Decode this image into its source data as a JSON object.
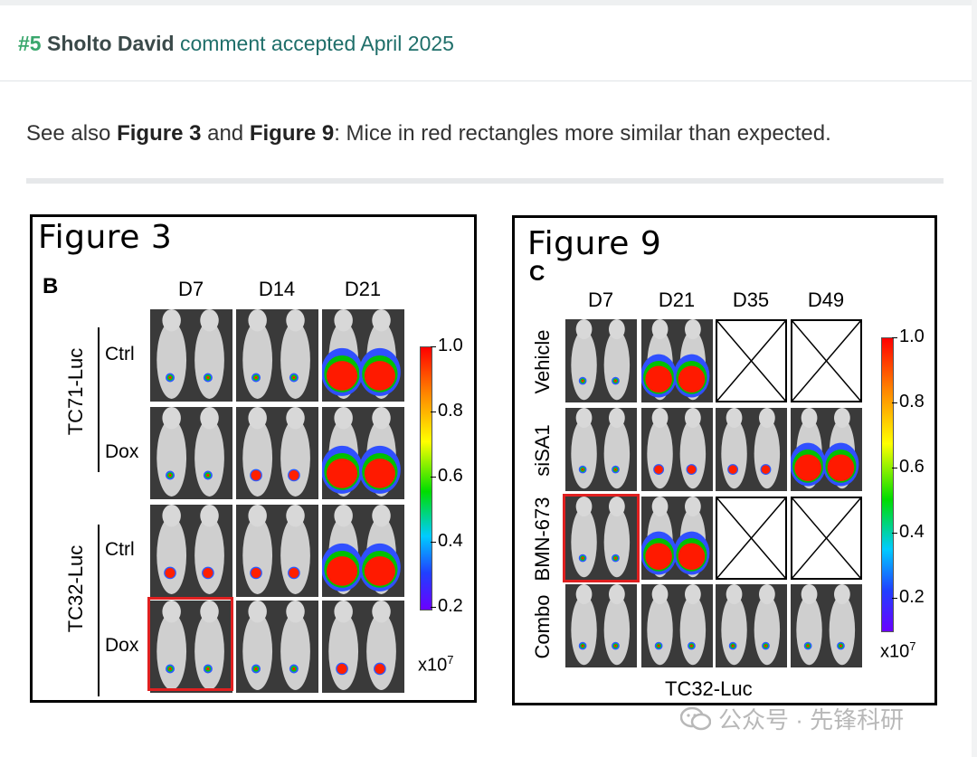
{
  "header": {
    "number": "#5",
    "author": "Sholto David",
    "status": "comment accepted April 2025"
  },
  "comment": {
    "prefix": "See also ",
    "fig_a": "Figure 3",
    "and": " and ",
    "fig_b": "Figure 9",
    "suffix": ": Mice in red rectangles more similar than expected."
  },
  "figure3": {
    "title": "Figure 3",
    "panel": "B",
    "columns": [
      "D7",
      "D14",
      "D21"
    ],
    "groups": [
      "TC71-Luc",
      "TC32-Luc"
    ],
    "rows": [
      "Ctrl",
      "Dox",
      "Ctrl",
      "Dox"
    ],
    "colorbar_ticks": [
      "1.0",
      "0.8",
      "0.6",
      "0.4",
      "0.2"
    ],
    "colorbar_unit": "x10",
    "colorbar_exp": "7"
  },
  "figure9": {
    "title": "Figure 9",
    "panel": "C",
    "columns": [
      "D7",
      "D21",
      "D35",
      "D49"
    ],
    "rows": [
      "Vehicle",
      "siSA1",
      "BMN-673",
      "Combo"
    ],
    "bottom_label": "TC32-Luc",
    "colorbar_ticks": [
      "1.0",
      "0.8",
      "0.6",
      "0.4",
      "0.2"
    ],
    "colorbar_unit": "x10",
    "colorbar_exp": "7"
  },
  "watermark": {
    "text": "公众号 · 先锋科研",
    "icon": "wechat-icon"
  },
  "colors": {
    "highlight": "#e02020",
    "header_text": "#1f6f6a",
    "number": "#3aa76d"
  }
}
